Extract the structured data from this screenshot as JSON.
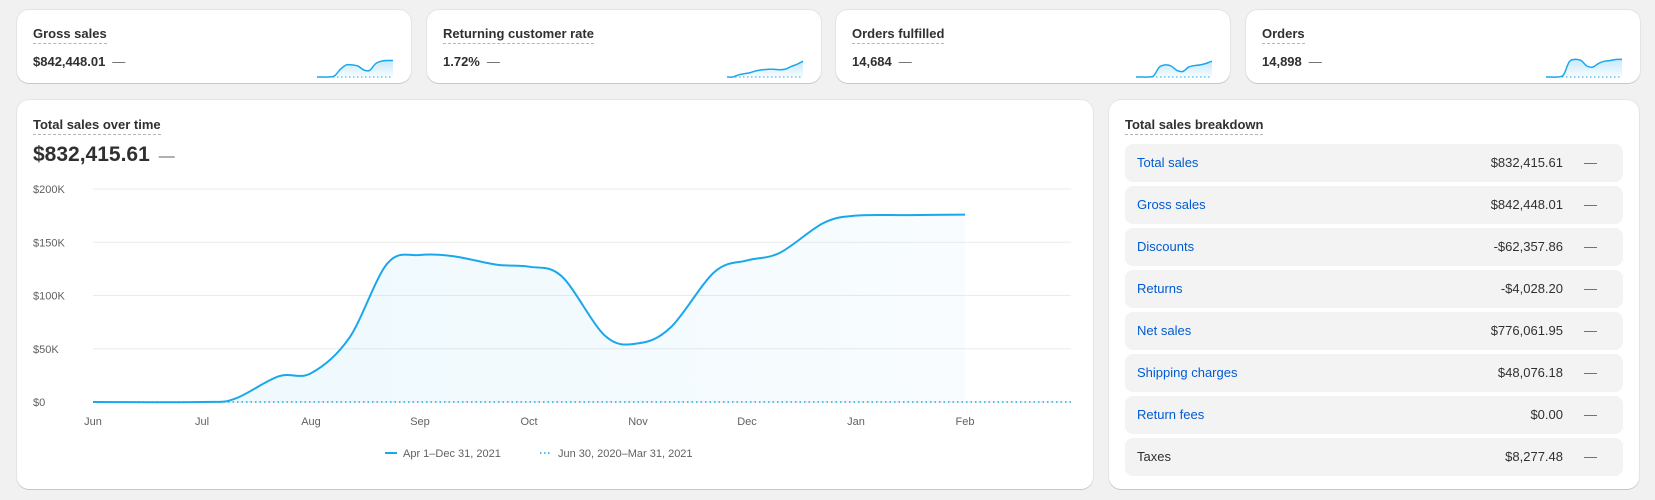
{
  "metrics": [
    {
      "title": "Gross sales",
      "value": "$842,448.01",
      "dash": "—",
      "spark": [
        0,
        0,
        0,
        0.05,
        0.35,
        0.55,
        0.55,
        0.5,
        0.32,
        0.3,
        0.6,
        0.72,
        0.75,
        0.75
      ]
    },
    {
      "title": "Returning customer rate",
      "value": "1.72%",
      "dash": "—",
      "spark": [
        0,
        0,
        0.1,
        0.15,
        0.2,
        0.28,
        0.33,
        0.35,
        0.35,
        0.33,
        0.36,
        0.48,
        0.58,
        0.72
      ]
    },
    {
      "title": "Orders fulfilled",
      "value": "14,684",
      "dash": "—",
      "spark": [
        0,
        0,
        0,
        0.05,
        0.45,
        0.55,
        0.5,
        0.3,
        0.25,
        0.45,
        0.52,
        0.55,
        0.62,
        0.72
      ]
    },
    {
      "title": "Orders",
      "value": "14,898",
      "dash": "—",
      "spark": [
        0,
        0,
        0,
        0.1,
        0.7,
        0.8,
        0.75,
        0.5,
        0.45,
        0.62,
        0.72,
        0.75,
        0.8,
        0.8
      ]
    }
  ],
  "main": {
    "title": "Total sales over time",
    "value": "$832,415.61",
    "dash": "—"
  },
  "chart_data": {
    "type": "line",
    "title": "Total sales over time",
    "categories": [
      "Jun",
      "Jul",
      "Aug",
      "Sep",
      "Oct",
      "Nov",
      "Dec",
      "Jan",
      "Feb"
    ],
    "y_tick_labels": [
      "$200K",
      "$150K",
      "$100K",
      "$50K",
      "$0"
    ],
    "ylim": [
      0,
      200000
    ],
    "series": [
      {
        "name": "Apr 1–Dec 31, 2021",
        "style": "solid",
        "color": "#1aa7ec",
        "x": [
          0,
          1,
          1.3,
          1.7,
          2,
          2.35,
          2.7,
          3,
          3.3,
          3.7,
          4,
          4.3,
          4.7,
          5,
          5.3,
          5.7,
          6,
          6.3,
          6.7,
          7,
          7.5,
          8
        ],
        "y": [
          0,
          0,
          3000,
          24000,
          27000,
          60000,
          130000,
          138000,
          137000,
          129000,
          127000,
          118000,
          62000,
          55000,
          70000,
          122000,
          133000,
          140000,
          168000,
          175000,
          175500,
          176000
        ]
      },
      {
        "name": "Jun 30, 2020–Mar 31, 2021",
        "style": "dotted",
        "color": "#1aa7ec",
        "x": [
          0,
          9
        ],
        "y": [
          0,
          0
        ]
      }
    ]
  },
  "breakdown": {
    "title": "Total sales breakdown",
    "rows": [
      {
        "label": "Total sales",
        "value": "$832,415.61",
        "dash": "—",
        "link": true
      },
      {
        "label": "Gross sales",
        "value": "$842,448.01",
        "dash": "—",
        "link": true
      },
      {
        "label": "Discounts",
        "value": "-$62,357.86",
        "dash": "—",
        "link": true
      },
      {
        "label": "Returns",
        "value": "-$4,028.20",
        "dash": "—",
        "link": true
      },
      {
        "label": "Net sales",
        "value": "$776,061.95",
        "dash": "—",
        "link": true
      },
      {
        "label": "Shipping charges",
        "value": "$48,076.18",
        "dash": "—",
        "link": true
      },
      {
        "label": "Return fees",
        "value": "$0.00",
        "dash": "—",
        "link": true
      },
      {
        "label": "Taxes",
        "value": "$8,277.48",
        "dash": "—",
        "link": false
      }
    ]
  },
  "colors": {
    "accent": "#1aa7ec",
    "link": "#005bd3"
  }
}
